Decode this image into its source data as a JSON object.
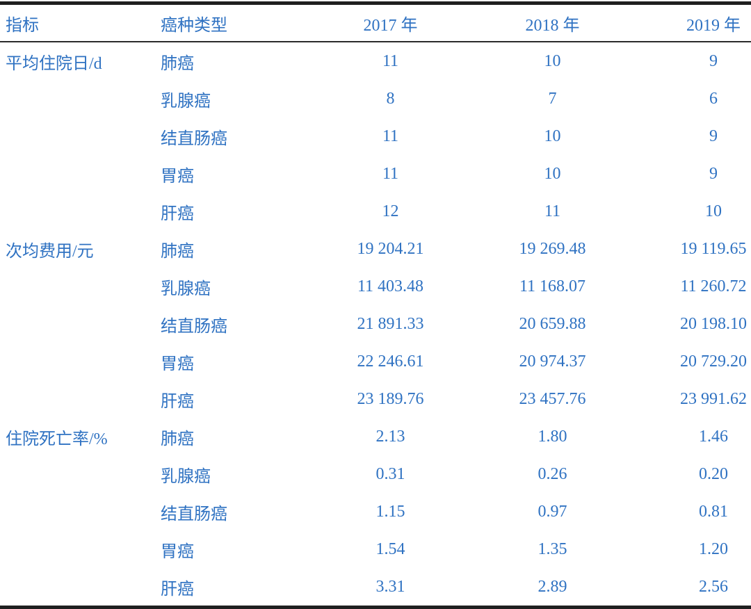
{
  "colors": {
    "text_blue": "#2f72c2",
    "border_black": "#1f1f1f",
    "background": "#ffffff"
  },
  "table": {
    "columns": [
      {
        "key": "indicator",
        "label": "指标"
      },
      {
        "key": "cancer_type",
        "label": "癌种类型"
      },
      {
        "key": "y2017",
        "label": "2017 年"
      },
      {
        "key": "y2018",
        "label": "2018 年"
      },
      {
        "key": "y2019",
        "label": "2019 年"
      }
    ],
    "sections": [
      {
        "indicator": "平均住院日/d",
        "rows": [
          {
            "type": "肺癌",
            "values": [
              "11",
              "10",
              "9"
            ]
          },
          {
            "type": "乳腺癌",
            "values": [
              "8",
              "7",
              "6"
            ]
          },
          {
            "type": "结直肠癌",
            "values": [
              "11",
              "10",
              "9"
            ]
          },
          {
            "type": "胃癌",
            "values": [
              "11",
              "10",
              "9"
            ]
          },
          {
            "type": "肝癌",
            "values": [
              "12",
              "11",
              "10"
            ]
          }
        ]
      },
      {
        "indicator": "次均费用/元",
        "rows": [
          {
            "type": "肺癌",
            "values": [
              "19 204.21",
              "19 269.48",
              "19 119.65"
            ]
          },
          {
            "type": "乳腺癌",
            "values": [
              "11 403.48",
              "11 168.07",
              "11 260.72"
            ]
          },
          {
            "type": "结直肠癌",
            "values": [
              "21 891.33",
              "20 659.88",
              "20 198.10"
            ]
          },
          {
            "type": "胃癌",
            "values": [
              "22 246.61",
              "20 974.37",
              "20 729.20"
            ]
          },
          {
            "type": "肝癌",
            "values": [
              "23 189.76",
              "23 457.76",
              "23 991.62"
            ]
          }
        ]
      },
      {
        "indicator": "住院死亡率/%",
        "rows": [
          {
            "type": "肺癌",
            "values": [
              "2.13",
              "1.80",
              "1.46"
            ]
          },
          {
            "type": "乳腺癌",
            "values": [
              "0.31",
              "0.26",
              "0.20"
            ]
          },
          {
            "type": "结直肠癌",
            "values": [
              "1.15",
              "0.97",
              "0.81"
            ]
          },
          {
            "type": "胃癌",
            "values": [
              "1.54",
              "1.35",
              "1.20"
            ]
          },
          {
            "type": "肝癌",
            "values": [
              "3.31",
              "2.89",
              "2.56"
            ]
          }
        ]
      }
    ]
  }
}
